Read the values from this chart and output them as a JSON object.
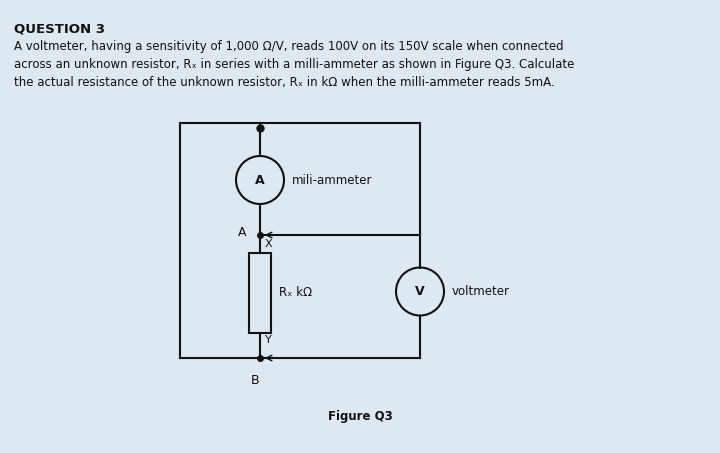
{
  "background_color": "#dde8f0",
  "title": "QUESTION 3",
  "body_line1": "A voltmeter, having a sensitivity of 1,000 Ω/V, reads 100V on its 150V scale when connected",
  "body_line2": "across an unknown resistor, Rₓ in series with a milli-ammeter as shown in Figure Q3. Calculate",
  "body_line3": "the actual resistance of the unknown resistor, Rₓ in kΩ when the milli-ammeter reads 5mA.",
  "figure_caption": "Figure Q3",
  "ammeter_label": "mili-ammeter",
  "voltmeter_label": "voltmeter",
  "resistor_label": "Rₓ kΩ",
  "node_A": "A",
  "node_B": "B",
  "node_X": "X",
  "node_Y": "Y",
  "ammeter_symbol": "A",
  "voltmeter_symbol": "V",
  "text_color": "#111111",
  "circuit_color": "#111111",
  "font_size_title": 9.5,
  "font_size_body": 8.5,
  "font_size_caption": 8.5,
  "font_size_circuit": 8.5
}
